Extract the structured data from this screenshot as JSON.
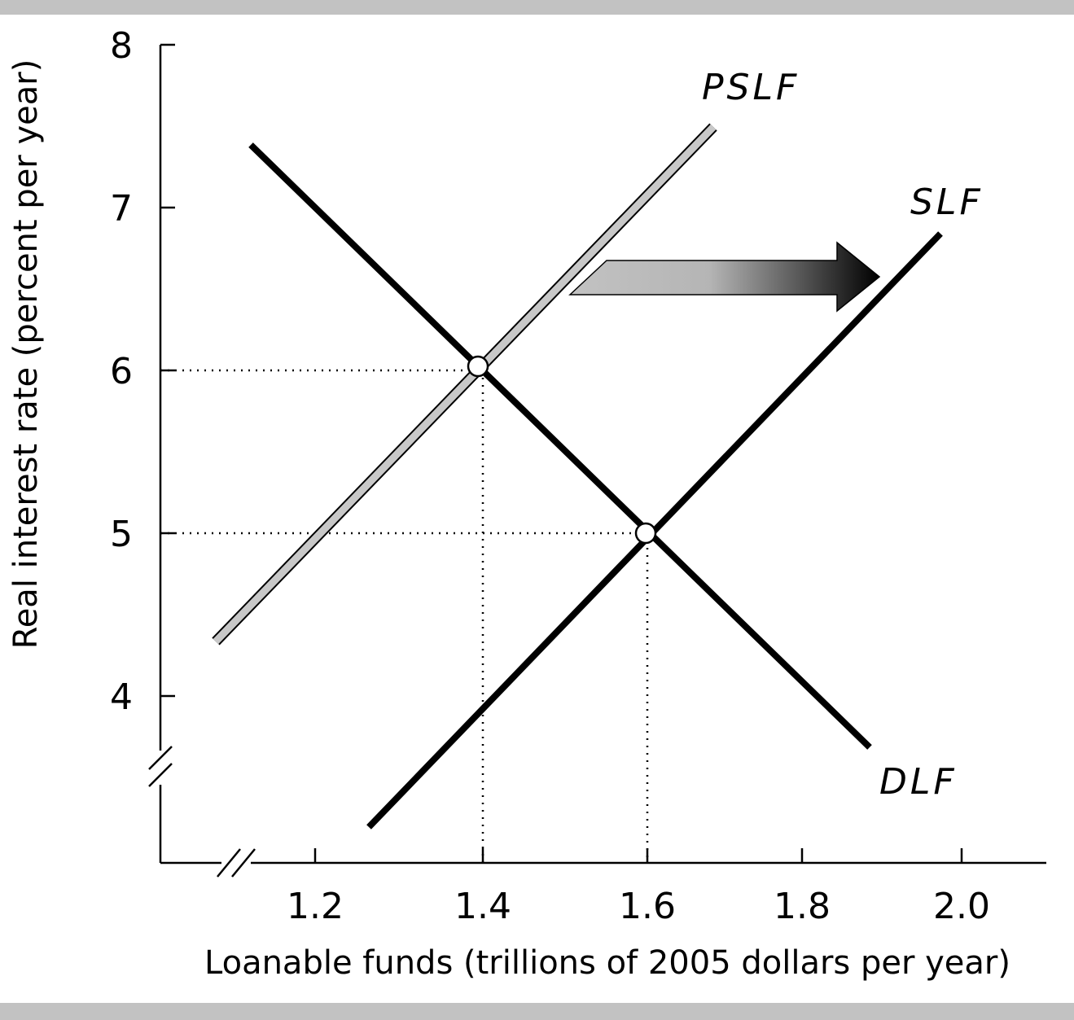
{
  "chart_data": {
    "type": "line",
    "xlabel": "Loanable funds (trillions of 2005 dollars per year)",
    "ylabel": "Real interest rate (percent per year)",
    "x_ticks": [
      1.2,
      1.4,
      1.6,
      1.8,
      2.0
    ],
    "x_tick_labels": [
      "1.2",
      "1.4",
      "1.6",
      "1.8",
      "2.0"
    ],
    "y_ticks": [
      4,
      5,
      6,
      7,
      8
    ],
    "y_tick_labels": [
      "4",
      "5",
      "6",
      "7",
      "8"
    ],
    "xlim": [
      1.0,
      2.1
    ],
    "ylim": [
      3.0,
      8.0
    ],
    "axis_breaks": [
      "x",
      "y"
    ],
    "grid": false,
    "series": [
      {
        "name": "PSLF",
        "color": "#c8c8c8",
        "outlined": true,
        "x": [
          1.08,
          1.68
        ],
        "y": [
          4.35,
          7.55
        ]
      },
      {
        "name": "DLF",
        "color": "#000000",
        "x": [
          1.12,
          1.88
        ],
        "y": [
          7.4,
          3.7
        ]
      },
      {
        "name": "SLF",
        "color": "#000000",
        "x": [
          1.27,
          1.97
        ],
        "y": [
          3.2,
          6.87
        ]
      }
    ],
    "equilibria": [
      {
        "x": 1.4,
        "y": 6
      },
      {
        "x": 1.6,
        "y": 5
      }
    ],
    "annotations": [
      {
        "type": "shift-arrow",
        "from": "PSLF",
        "to": "SLF",
        "direction": "right"
      }
    ]
  },
  "colors": {
    "frame_bar": "#c2c2c2",
    "curve": "#000000",
    "prior_curve": "#c8c8c8"
  }
}
